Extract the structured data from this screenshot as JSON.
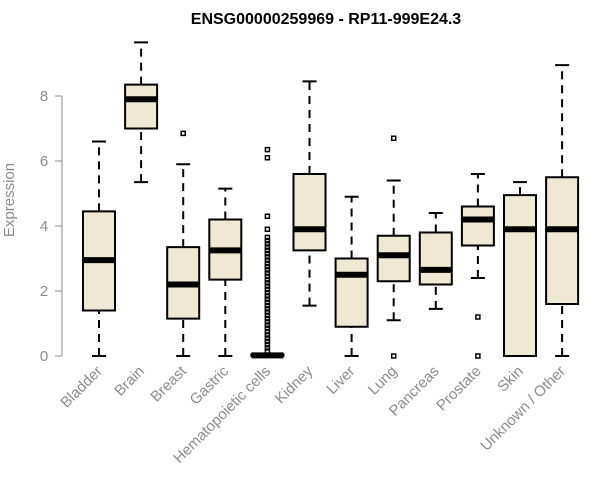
{
  "chart_data": {
    "type": "boxplot",
    "title": "ENSG00000259969 - RP11-999E24.3",
    "xlabel": "",
    "ylabel": "Expression",
    "ylim": [
      0,
      9.2
    ],
    "yticks": [
      0,
      2,
      4,
      6,
      8
    ],
    "colors": {
      "box_fill": "#efe8d2",
      "axis": "#8c8c8c",
      "stroke": "#000000"
    },
    "categories": [
      "Bladder",
      "Brain",
      "Breast",
      "Gastric",
      "Hematopoietic cells",
      "Kidney",
      "Liver",
      "Lung",
      "Pancreas",
      "Prostate",
      "Skin",
      "Unknown / Other"
    ],
    "boxes": [
      {
        "name": "Bladder",
        "min": 0,
        "q1": 1.4,
        "median": 2.95,
        "q3": 4.45,
        "max": 6.6,
        "outliers": []
      },
      {
        "name": "Brain",
        "min": 5.35,
        "q1": 7.0,
        "median": 7.9,
        "q3": 8.35,
        "max": 9.65,
        "outliers": []
      },
      {
        "name": "Breast",
        "min": 0,
        "q1": 1.15,
        "median": 2.2,
        "q3": 3.35,
        "max": 5.9,
        "outliers": [
          6.85
        ]
      },
      {
        "name": "Gastric",
        "min": 0,
        "q1": 2.35,
        "median": 3.25,
        "q3": 4.2,
        "max": 5.15,
        "outliers": []
      },
      {
        "name": "Hematopoietic cells",
        "min": 0,
        "q1": 0,
        "median": 0.02,
        "q3": 0.05,
        "max": 0.05,
        "outliers": [
          0.15,
          0.25,
          0.35,
          0.45,
          0.55,
          0.65,
          0.75,
          0.85,
          0.95,
          1.05,
          1.15,
          1.25,
          1.35,
          1.45,
          1.55,
          1.65,
          1.75,
          1.85,
          1.95,
          2.05,
          2.15,
          2.25,
          2.35,
          2.45,
          2.55,
          2.65,
          2.75,
          2.85,
          2.95,
          3.05,
          3.15,
          3.25,
          3.35,
          3.45,
          3.55,
          3.65,
          3.9,
          4.3,
          6.1,
          6.35
        ]
      },
      {
        "name": "Kidney",
        "min": 1.55,
        "q1": 3.25,
        "median": 3.9,
        "q3": 5.6,
        "max": 8.45,
        "outliers": []
      },
      {
        "name": "Liver",
        "min": 0,
        "q1": 0.9,
        "median": 2.5,
        "q3": 3.0,
        "max": 4.9,
        "outliers": []
      },
      {
        "name": "Lung",
        "min": 1.1,
        "q1": 2.3,
        "median": 3.1,
        "q3": 3.7,
        "max": 5.4,
        "outliers": [
          0,
          6.7
        ]
      },
      {
        "name": "Pancreas",
        "min": 1.45,
        "q1": 2.2,
        "median": 2.65,
        "q3": 3.8,
        "max": 4.4,
        "outliers": []
      },
      {
        "name": "Prostate",
        "min": 2.4,
        "q1": 3.4,
        "median": 4.2,
        "q3": 4.6,
        "max": 5.6,
        "outliers": [
          0,
          1.2
        ]
      },
      {
        "name": "Skin",
        "min": 0,
        "q1": 0,
        "median": 3.9,
        "q3": 4.95,
        "max": 5.35,
        "outliers": []
      },
      {
        "name": "Unknown / Other",
        "min": 0,
        "q1": 1.6,
        "median": 3.9,
        "q3": 5.5,
        "max": 8.95,
        "outliers": []
      }
    ]
  }
}
